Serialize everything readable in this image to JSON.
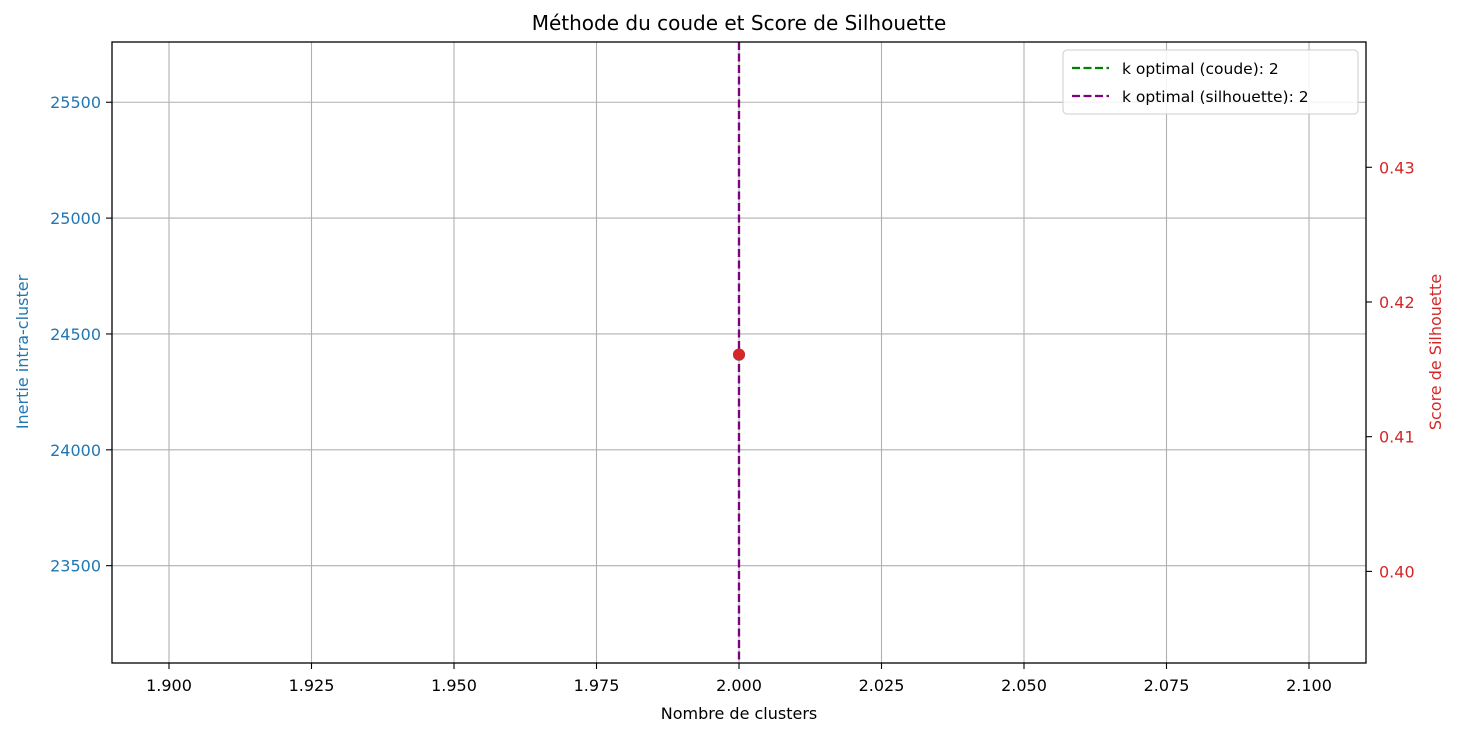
{
  "chart_data": {
    "type": "line",
    "title": "Méthode du coude et Score de Silhouette",
    "xlabel": "Nombre de clusters",
    "ylabel_left": "Inertie intra-cluster",
    "ylabel_right": "Score de Silhouette",
    "xlim": [
      1.89,
      2.11
    ],
    "ylim_left": [
      23080,
      25760
    ],
    "ylim_right": [
      0.3932,
      0.4393
    ],
    "x_ticks": [
      1.9,
      1.925,
      1.95,
      1.975,
      2.0,
      2.025,
      2.05,
      2.075,
      2.1
    ],
    "x_tick_labels": [
      "1.900",
      "1.925",
      "1.950",
      "1.975",
      "2.000",
      "2.025",
      "2.050",
      "2.075",
      "2.100"
    ],
    "y_left_ticks": [
      23500,
      24000,
      24500,
      25000,
      25500
    ],
    "y_left_tick_labels": [
      "23500",
      "24000",
      "24500",
      "25000",
      "25500"
    ],
    "y_right_ticks": [
      0.4,
      0.41,
      0.42,
      0.43
    ],
    "y_right_tick_labels": [
      "0.40",
      "0.41",
      "0.42",
      "0.43"
    ],
    "grid": true,
    "legend_position": "top-right",
    "series": [
      {
        "axis": "left",
        "x": [
          2
        ],
        "y": [
          24410
        ],
        "color": "#1f77b4",
        "marker": "circle"
      },
      {
        "axis": "right",
        "x": [
          2
        ],
        "y": [
          0.4161
        ],
        "color": "#d62728",
        "marker": "circle"
      }
    ],
    "vlines": [
      {
        "x": 2,
        "label": "k optimal (coude): 2",
        "color": "#008000",
        "style": "dashed"
      },
      {
        "x": 2,
        "label": "k optimal (silhouette): 2",
        "color": "#800080",
        "style": "dashed"
      }
    ],
    "colors": {
      "left_axis": "#1f77b4",
      "right_axis": "#d62728",
      "grid": "#b0b0b0",
      "frame": "#000000"
    }
  }
}
